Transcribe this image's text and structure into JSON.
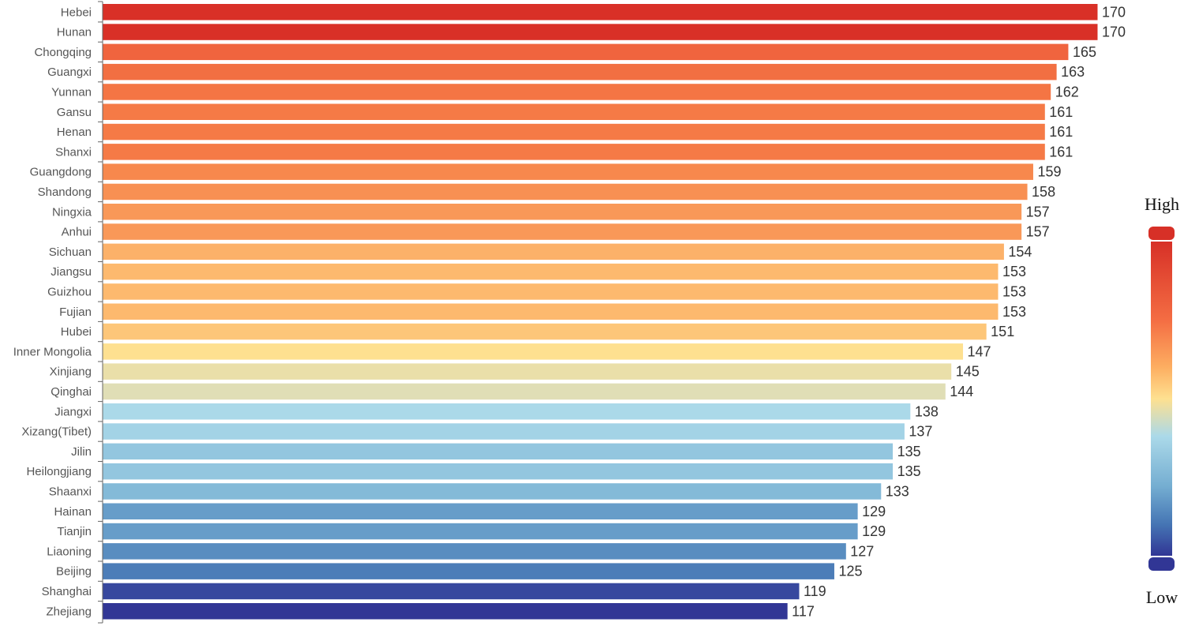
{
  "chart_data": {
    "type": "bar",
    "orientation": "horizontal",
    "categories": [
      "Hebei",
      "Hunan",
      "Chongqing",
      "Guangxi",
      "Yunnan",
      "Gansu",
      "Henan",
      "Shanxi",
      "Guangdong",
      "Shandong",
      "Ningxia",
      "Anhui",
      "Sichuan",
      "Jiangsu",
      "Guizhou",
      "Fujian",
      "Hubei",
      "Inner Mongolia",
      "Xinjiang",
      "Qinghai",
      "Jiangxi",
      "Xizang(Tibet)",
      "Jilin",
      "Heilongjiang",
      "Shaanxi",
      "Hainan",
      "Tianjin",
      "Liaoning",
      "Beijing",
      "Shanghai",
      "Zhejiang"
    ],
    "values": [
      170,
      170,
      165,
      163,
      162,
      161,
      161,
      161,
      159,
      158,
      157,
      157,
      154,
      153,
      153,
      153,
      151,
      147,
      145,
      144,
      138,
      137,
      135,
      135,
      133,
      129,
      129,
      127,
      125,
      119,
      117
    ],
    "xlim": [
      0,
      170
    ],
    "grid": false,
    "legend": {
      "type": "color-scale",
      "placement": "right",
      "high_label": "High",
      "low_label": "Low",
      "high_color": "#d73027",
      "low_color": "#313695"
    }
  }
}
